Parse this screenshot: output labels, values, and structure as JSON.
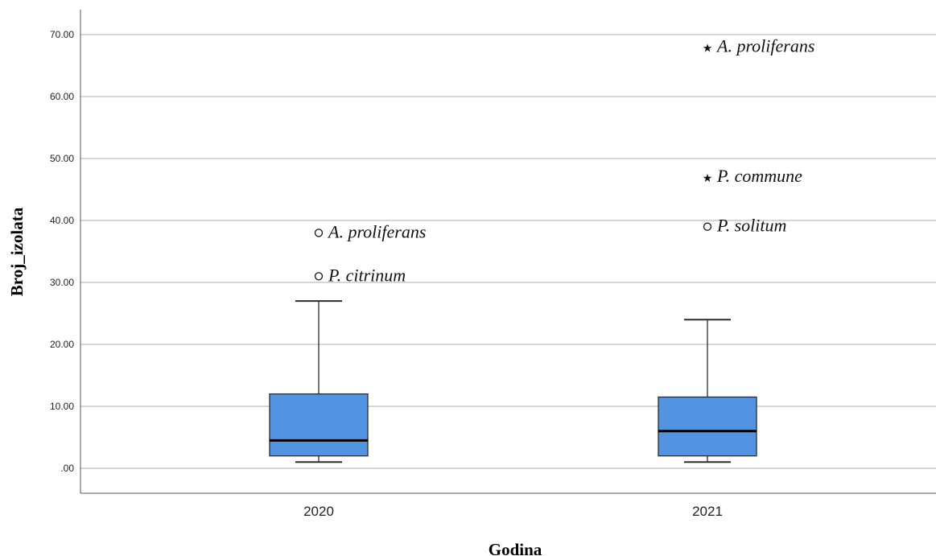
{
  "chart_data": {
    "type": "boxplot",
    "xlabel": "Godina",
    "ylabel": "Broj_izolata",
    "ylim": [
      -4,
      74
    ],
    "yticks": [
      {
        "value": 0,
        "label": ".00"
      },
      {
        "value": 10,
        "label": "10.00"
      },
      {
        "value": 20,
        "label": "20.00"
      },
      {
        "value": 30,
        "label": "30.00"
      },
      {
        "value": 40,
        "label": "40.00"
      },
      {
        "value": 50,
        "label": "50.00"
      },
      {
        "value": 60,
        "label": "60.00"
      },
      {
        "value": 70,
        "label": "70.00"
      }
    ],
    "grid": true,
    "categories": [
      "2020",
      "2021"
    ],
    "boxes": [
      {
        "category": "2020",
        "min": 1,
        "q1": 2,
        "median": 4.5,
        "q3": 12,
        "max": 27,
        "outliers": [
          {
            "value": 38,
            "marker": "circle",
            "label": "A. proliferans"
          },
          {
            "value": 31,
            "marker": "circle",
            "label": "P. citrinum"
          }
        ]
      },
      {
        "category": "2021",
        "min": 1,
        "q1": 2,
        "median": 6,
        "q3": 11.5,
        "max": 24,
        "outliers": [
          {
            "value": 68,
            "marker": "star",
            "label": "A. proliferans"
          },
          {
            "value": 47,
            "marker": "star",
            "label": "P. commune"
          },
          {
            "value": 39,
            "marker": "circle",
            "label": "P. solitum"
          }
        ]
      }
    ],
    "colors": {
      "box_fill": "#5294e2",
      "box_stroke": "#2b2b2b",
      "median": "#000000",
      "grid": "#bdbdbd",
      "axis": "#555555"
    }
  }
}
